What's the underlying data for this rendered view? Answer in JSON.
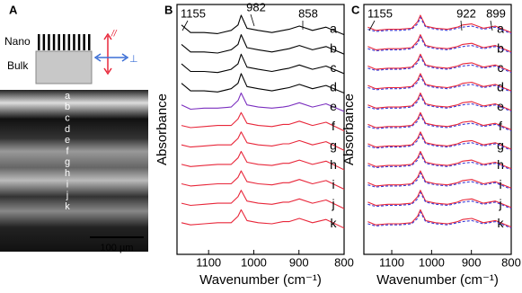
{
  "panel_a": {
    "label": "A",
    "nano": "Nano",
    "bulk": "Bulk",
    "parallel": "//",
    "perpendicular": "⊥",
    "layers": [
      "a",
      "b",
      "c",
      "d",
      "e",
      "f",
      "g",
      "h",
      "i",
      "j",
      "k"
    ],
    "scale_bar": "100 µm"
  },
  "chart_data": [
    {
      "type": "line",
      "panel_label": "B",
      "ylabel": "Absorbance",
      "xlabel": "Wavenumber (cm⁻¹)",
      "xlim": [
        1170,
        800
      ],
      "xticks": [
        1100,
        1000,
        900,
        800
      ],
      "x": [
        1160,
        1140,
        1110,
        1080,
        1050,
        1035,
        1028,
        1015,
        990,
        960,
        935,
        922,
        899,
        870,
        840,
        800
      ],
      "annotations": [
        "1155",
        "982",
        "858"
      ],
      "series": [
        {
          "name": "a",
          "color": "#000000",
          "values": [
            0.55,
            0.2,
            0.2,
            0.15,
            0.3,
            0.55,
            1.0,
            0.4,
            0.3,
            0.2,
            0.3,
            0.35,
            0.5,
            0.3,
            0.45,
            0.1
          ]
        },
        {
          "name": "b",
          "color": "#000000",
          "values": [
            0.55,
            0.2,
            0.2,
            0.15,
            0.3,
            0.55,
            1.0,
            0.4,
            0.3,
            0.2,
            0.3,
            0.35,
            0.5,
            0.3,
            0.45,
            0.1
          ]
        },
        {
          "name": "c",
          "color": "#000000",
          "values": [
            0.55,
            0.2,
            0.2,
            0.15,
            0.3,
            0.55,
            1.0,
            0.4,
            0.3,
            0.2,
            0.3,
            0.35,
            0.5,
            0.3,
            0.45,
            0.1
          ]
        },
        {
          "name": "d",
          "color": "#000000",
          "values": [
            0.55,
            0.2,
            0.2,
            0.15,
            0.3,
            0.55,
            1.0,
            0.4,
            0.3,
            0.2,
            0.3,
            0.35,
            0.5,
            0.3,
            0.45,
            0.1
          ]
        },
        {
          "name": "e",
          "color": "#7b2fbf",
          "values": [
            0.45,
            0.25,
            0.3,
            0.3,
            0.35,
            0.65,
            1.0,
            0.45,
            0.35,
            0.3,
            0.35,
            0.4,
            0.55,
            0.35,
            0.5,
            0.15
          ]
        },
        {
          "name": "f",
          "color": "#e8273a",
          "values": [
            0.4,
            0.3,
            0.35,
            0.4,
            0.4,
            0.7,
            1.0,
            0.5,
            0.4,
            0.35,
            0.45,
            0.45,
            0.6,
            0.4,
            0.55,
            0.15
          ]
        },
        {
          "name": "g",
          "color": "#e8273a",
          "values": [
            0.4,
            0.3,
            0.35,
            0.4,
            0.4,
            0.7,
            1.0,
            0.5,
            0.4,
            0.35,
            0.45,
            0.45,
            0.6,
            0.4,
            0.55,
            0.15
          ]
        },
        {
          "name": "h",
          "color": "#e8273a",
          "values": [
            0.4,
            0.3,
            0.35,
            0.4,
            0.4,
            0.7,
            1.0,
            0.5,
            0.4,
            0.35,
            0.45,
            0.45,
            0.6,
            0.4,
            0.55,
            0.15
          ]
        },
        {
          "name": "i",
          "color": "#e8273a",
          "values": [
            0.4,
            0.3,
            0.35,
            0.4,
            0.4,
            0.7,
            1.0,
            0.5,
            0.4,
            0.35,
            0.45,
            0.45,
            0.6,
            0.4,
            0.55,
            0.15
          ]
        },
        {
          "name": "j",
          "color": "#e8273a",
          "values": [
            0.4,
            0.3,
            0.35,
            0.4,
            0.4,
            0.7,
            1.0,
            0.5,
            0.4,
            0.35,
            0.45,
            0.45,
            0.6,
            0.4,
            0.55,
            0.15
          ]
        },
        {
          "name": "k",
          "color": "#e8273a",
          "values": [
            0.4,
            0.3,
            0.35,
            0.4,
            0.4,
            0.7,
            1.0,
            0.5,
            0.4,
            0.35,
            0.45,
            0.45,
            0.6,
            0.4,
            0.55,
            0.15
          ]
        }
      ]
    },
    {
      "type": "line",
      "panel_label": "C",
      "ylabel": "Absorbance",
      "xlabel": "Wavenumber (cm⁻¹)",
      "xlim": [
        1170,
        800
      ],
      "xticks": [
        1100,
        1000,
        900,
        800
      ],
      "x": [
        1160,
        1140,
        1110,
        1080,
        1050,
        1035,
        1028,
        1015,
        990,
        960,
        935,
        922,
        899,
        870,
        840,
        800
      ],
      "annotations": [
        "1155",
        "922",
        "899"
      ],
      "series": [
        {
          "name": "a",
          "color": "#e8273a",
          "values": [
            0.45,
            0.3,
            0.35,
            0.35,
            0.4,
            0.7,
            1.0,
            0.5,
            0.4,
            0.35,
            0.45,
            0.55,
            0.6,
            0.4,
            0.5,
            0.2
          ]
        },
        {
          "name": "b",
          "color": "#e8273a",
          "values": [
            0.45,
            0.3,
            0.35,
            0.35,
            0.4,
            0.7,
            1.0,
            0.5,
            0.4,
            0.35,
            0.45,
            0.55,
            0.6,
            0.4,
            0.5,
            0.2
          ]
        },
        {
          "name": "c",
          "color": "#e8273a",
          "values": [
            0.45,
            0.3,
            0.35,
            0.35,
            0.4,
            0.7,
            1.0,
            0.5,
            0.4,
            0.35,
            0.45,
            0.55,
            0.6,
            0.4,
            0.5,
            0.2
          ]
        },
        {
          "name": "d",
          "color": "#e8273a",
          "values": [
            0.45,
            0.3,
            0.35,
            0.35,
            0.4,
            0.7,
            1.0,
            0.5,
            0.4,
            0.35,
            0.45,
            0.55,
            0.6,
            0.4,
            0.5,
            0.2
          ]
        },
        {
          "name": "e",
          "color": "#e8273a",
          "values": [
            0.45,
            0.3,
            0.35,
            0.35,
            0.4,
            0.7,
            1.0,
            0.5,
            0.4,
            0.35,
            0.45,
            0.55,
            0.6,
            0.4,
            0.5,
            0.2
          ]
        },
        {
          "name": "f",
          "color": "#e8273a",
          "values": [
            0.45,
            0.3,
            0.35,
            0.35,
            0.4,
            0.7,
            1.0,
            0.5,
            0.4,
            0.35,
            0.45,
            0.55,
            0.6,
            0.4,
            0.5,
            0.2
          ]
        },
        {
          "name": "g",
          "color": "#e8273a",
          "values": [
            0.45,
            0.3,
            0.35,
            0.35,
            0.4,
            0.7,
            1.0,
            0.5,
            0.4,
            0.35,
            0.45,
            0.55,
            0.6,
            0.4,
            0.5,
            0.2
          ]
        },
        {
          "name": "h",
          "color": "#e8273a",
          "values": [
            0.45,
            0.3,
            0.35,
            0.35,
            0.4,
            0.7,
            1.0,
            0.5,
            0.4,
            0.35,
            0.45,
            0.55,
            0.6,
            0.4,
            0.5,
            0.2
          ]
        },
        {
          "name": "i",
          "color": "#e8273a",
          "values": [
            0.45,
            0.3,
            0.35,
            0.35,
            0.4,
            0.7,
            1.0,
            0.5,
            0.4,
            0.35,
            0.45,
            0.55,
            0.6,
            0.4,
            0.5,
            0.2
          ]
        },
        {
          "name": "j",
          "color": "#e8273a",
          "values": [
            0.45,
            0.3,
            0.35,
            0.35,
            0.4,
            0.7,
            1.0,
            0.5,
            0.4,
            0.35,
            0.45,
            0.55,
            0.6,
            0.4,
            0.5,
            0.2
          ]
        },
        {
          "name": "k",
          "color": "#e8273a",
          "values": [
            0.45,
            0.3,
            0.35,
            0.35,
            0.4,
            0.7,
            1.0,
            0.5,
            0.4,
            0.35,
            0.45,
            0.55,
            0.6,
            0.4,
            0.5,
            0.2
          ]
        },
        {
          "color": "#3b3bd6",
          "dashed": true,
          "values": [
            0.35,
            0.25,
            0.3,
            0.3,
            0.35,
            0.6,
            0.9,
            0.45,
            0.35,
            0.3,
            0.4,
            0.45,
            0.5,
            0.35,
            0.45,
            0.15
          ]
        },
        {
          "color": "#3b3bd6",
          "dashed": true,
          "values": [
            0.35,
            0.25,
            0.3,
            0.3,
            0.35,
            0.6,
            0.9,
            0.45,
            0.35,
            0.3,
            0.4,
            0.45,
            0.5,
            0.35,
            0.45,
            0.15
          ]
        },
        {
          "color": "#3b3bd6",
          "dashed": true,
          "values": [
            0.35,
            0.25,
            0.3,
            0.3,
            0.35,
            0.6,
            0.9,
            0.45,
            0.35,
            0.3,
            0.4,
            0.45,
            0.5,
            0.35,
            0.45,
            0.15
          ]
        },
        {
          "color": "#3b3bd6",
          "dashed": true,
          "values": [
            0.35,
            0.25,
            0.3,
            0.3,
            0.35,
            0.6,
            0.9,
            0.45,
            0.35,
            0.3,
            0.4,
            0.45,
            0.5,
            0.35,
            0.45,
            0.15
          ]
        },
        {
          "color": "#3b3bd6",
          "dashed": true,
          "values": [
            0.35,
            0.25,
            0.3,
            0.3,
            0.35,
            0.6,
            0.9,
            0.45,
            0.35,
            0.3,
            0.4,
            0.45,
            0.5,
            0.35,
            0.45,
            0.15
          ]
        },
        {
          "color": "#3b3bd6",
          "dashed": true,
          "values": [
            0.35,
            0.25,
            0.3,
            0.3,
            0.35,
            0.6,
            0.9,
            0.45,
            0.35,
            0.3,
            0.4,
            0.45,
            0.5,
            0.35,
            0.45,
            0.15
          ]
        },
        {
          "color": "#3b3bd6",
          "dashed": true,
          "values": [
            0.35,
            0.25,
            0.3,
            0.3,
            0.35,
            0.6,
            0.9,
            0.45,
            0.35,
            0.3,
            0.4,
            0.45,
            0.5,
            0.35,
            0.45,
            0.15
          ]
        },
        {
          "color": "#3b3bd6",
          "dashed": true,
          "values": [
            0.35,
            0.25,
            0.3,
            0.3,
            0.35,
            0.6,
            0.9,
            0.45,
            0.35,
            0.3,
            0.4,
            0.45,
            0.5,
            0.35,
            0.45,
            0.15
          ]
        },
        {
          "color": "#3b3bd6",
          "dashed": true,
          "values": [
            0.35,
            0.25,
            0.3,
            0.3,
            0.35,
            0.6,
            0.9,
            0.45,
            0.35,
            0.3,
            0.4,
            0.45,
            0.5,
            0.35,
            0.45,
            0.15
          ]
        },
        {
          "color": "#3b3bd6",
          "dashed": true,
          "values": [
            0.35,
            0.25,
            0.3,
            0.3,
            0.35,
            0.6,
            0.9,
            0.45,
            0.35,
            0.3,
            0.4,
            0.45,
            0.5,
            0.35,
            0.45,
            0.15
          ]
        },
        {
          "color": "#3b3bd6",
          "dashed": true,
          "values": [
            0.35,
            0.25,
            0.3,
            0.3,
            0.35,
            0.6,
            0.9,
            0.45,
            0.35,
            0.3,
            0.4,
            0.45,
            0.5,
            0.35,
            0.45,
            0.15
          ]
        }
      ]
    }
  ]
}
